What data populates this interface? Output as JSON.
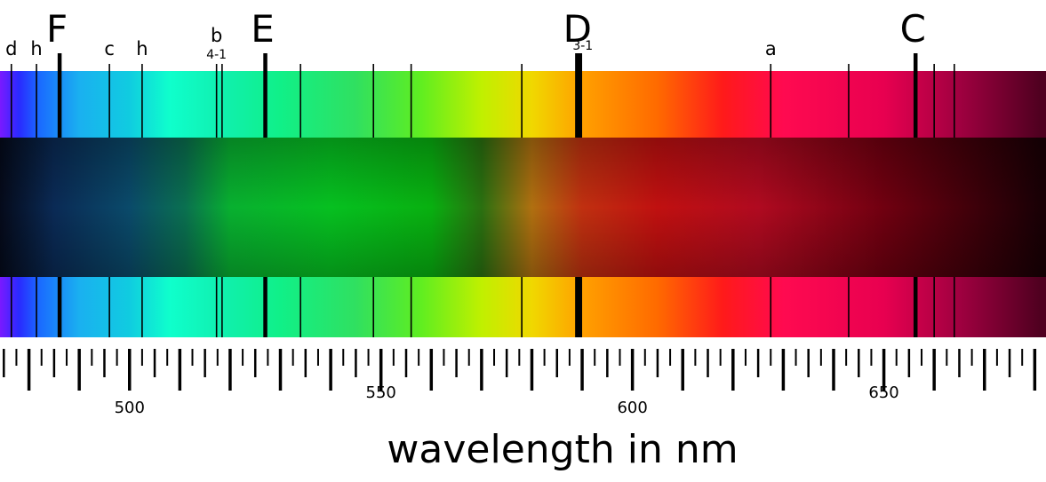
{
  "diagram": {
    "axis_title": "wavelength in nm",
    "axis": {
      "min": 470,
      "max": 681,
      "minor_step": 2.5,
      "labeled_ticks": [
        500,
        550,
        600,
        650
      ]
    },
    "spectrum_colors": {
      "stops": [
        {
          "nm": 470,
          "color": "#7a1aff"
        },
        {
          "nm": 478,
          "color": "#2a2aff"
        },
        {
          "nm": 482,
          "color": "#1a6aff"
        },
        {
          "nm": 490,
          "color": "#1ab0f0"
        },
        {
          "nm": 500,
          "color": "#10cce0"
        },
        {
          "nm": 508,
          "color": "#0fffcc"
        },
        {
          "nm": 518,
          "color": "#10f0b0"
        },
        {
          "nm": 530,
          "color": "#10f088"
        },
        {
          "nm": 545,
          "color": "#30e060"
        },
        {
          "nm": 558,
          "color": "#60ee20"
        },
        {
          "nm": 570,
          "color": "#c0f000"
        },
        {
          "nm": 580,
          "color": "#f0d800"
        },
        {
          "nm": 590,
          "color": "#ffa000"
        },
        {
          "nm": 605,
          "color": "#ff6a00"
        },
        {
          "nm": 618,
          "color": "#ff1a1a"
        },
        {
          "nm": 630,
          "color": "#ff0a50"
        },
        {
          "nm": 650,
          "color": "#e80050"
        },
        {
          "nm": 665,
          "color": "#a00040"
        },
        {
          "nm": 681,
          "color": "#500020"
        }
      ],
      "photo_stops": [
        {
          "nm": 470,
          "color": "#050a1a"
        },
        {
          "nm": 485,
          "color": "#0a2a55"
        },
        {
          "nm": 500,
          "color": "#0a4a6a"
        },
        {
          "nm": 511,
          "color": "#0a7050"
        },
        {
          "nm": 520,
          "color": "#08b030"
        },
        {
          "nm": 540,
          "color": "#06c020"
        },
        {
          "nm": 560,
          "color": "#08b010"
        },
        {
          "nm": 570,
          "color": "#2a7010"
        },
        {
          "nm": 580,
          "color": "#b07010"
        },
        {
          "nm": 590,
          "color": "#c03010"
        },
        {
          "nm": 605,
          "color": "#c01010"
        },
        {
          "nm": 625,
          "color": "#b00a20"
        },
        {
          "nm": 650,
          "color": "#700010"
        },
        {
          "nm": 681,
          "color": "#1a0005"
        }
      ]
    },
    "lines": [
      {
        "nm": 486.1,
        "label": "F",
        "sublabel": "",
        "label_size": "large",
        "weight": "heavy"
      },
      {
        "nm": 527.0,
        "label": "E",
        "sublabel": "",
        "label_size": "large",
        "weight": "heavy"
      },
      {
        "nm": 589.0,
        "label": "",
        "sublabel": "",
        "label_size": "",
        "weight": "heavy"
      },
      {
        "nm": 589.6,
        "label": "D",
        "sublabel": "3-1",
        "label_size": "large",
        "weight": "heavy"
      },
      {
        "nm": 656.3,
        "label": "C",
        "sublabel": "",
        "label_size": "large",
        "weight": "heavy"
      },
      {
        "nm": 476.5,
        "label": "d",
        "sublabel": "",
        "label_size": "small",
        "weight": "thin"
      },
      {
        "nm": 481.5,
        "label": "h",
        "sublabel": "",
        "label_size": "small",
        "weight": "thin"
      },
      {
        "nm": 496.0,
        "label": "c",
        "sublabel": "",
        "label_size": "small",
        "weight": "thin"
      },
      {
        "nm": 502.5,
        "label": "h",
        "sublabel": "",
        "label_size": "small",
        "weight": "thin"
      },
      {
        "nm": 517.3,
        "label": "b",
        "sublabel": "4-1",
        "label_size": "small",
        "weight": "thin"
      },
      {
        "nm": 518.4,
        "label": "",
        "sublabel": "",
        "label_size": "",
        "weight": "thin"
      },
      {
        "nm": 534.0,
        "label": "",
        "sublabel": "",
        "label_size": "",
        "weight": "thin"
      },
      {
        "nm": 548.5,
        "label": "",
        "sublabel": "",
        "label_size": "",
        "weight": "thin"
      },
      {
        "nm": 556.0,
        "label": "",
        "sublabel": "",
        "label_size": "",
        "weight": "thin"
      },
      {
        "nm": 578.0,
        "label": "",
        "sublabel": "",
        "label_size": "",
        "weight": "thin"
      },
      {
        "nm": 627.5,
        "label": "a",
        "sublabel": "",
        "label_size": "small",
        "weight": "thin"
      },
      {
        "nm": 643.0,
        "label": "",
        "sublabel": "",
        "label_size": "",
        "weight": "thin"
      },
      {
        "nm": 660.0,
        "label": "",
        "sublabel": "",
        "label_size": "",
        "weight": "thin"
      },
      {
        "nm": 664.0,
        "label": "",
        "sublabel": "",
        "label_size": "",
        "weight": "thin"
      }
    ]
  }
}
